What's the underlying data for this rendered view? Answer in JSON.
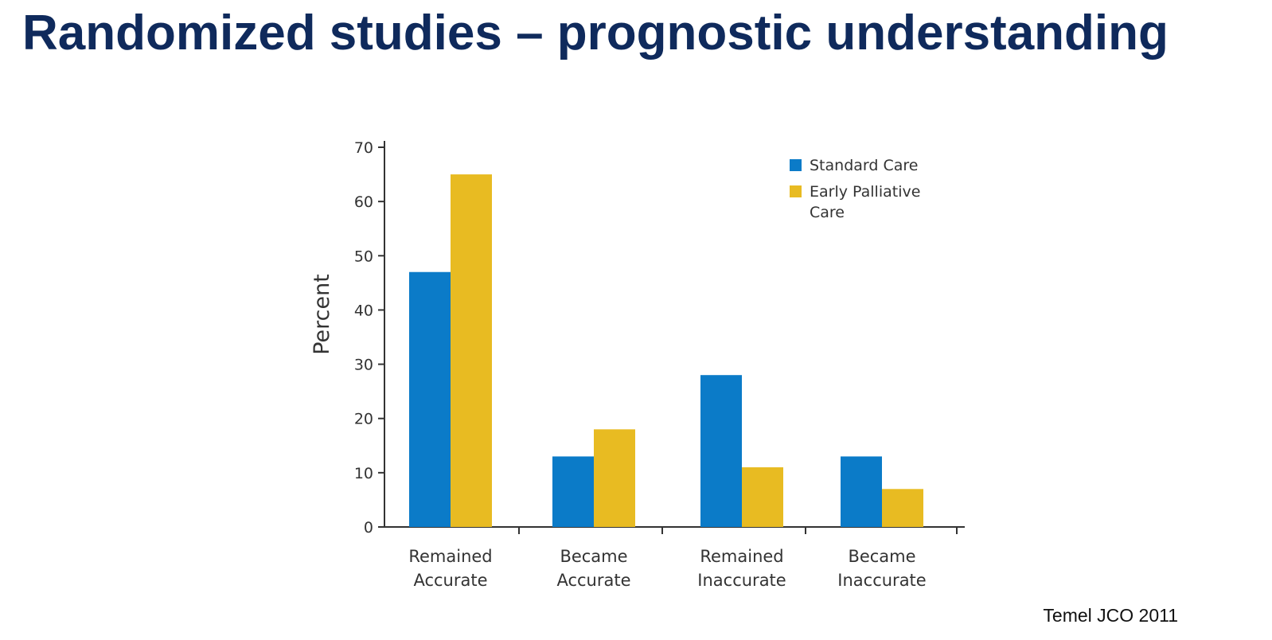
{
  "slide": {
    "title": "Randomized studies – prognostic understanding",
    "source": "Temel JCO 2011"
  },
  "chart_data": {
    "type": "bar",
    "categories": [
      [
        "Remained",
        "Accurate"
      ],
      [
        "Became",
        "Accurate"
      ],
      [
        "Remained",
        "Inaccurate"
      ],
      [
        "Became",
        "Inaccurate"
      ]
    ],
    "series": [
      {
        "name": "Standard Care",
        "color": "#0b7bc8",
        "values": [
          47,
          13,
          28,
          13
        ]
      },
      {
        "name": "Early Palliative Care",
        "color": "#e8bb22",
        "values": [
          65,
          18,
          11,
          7
        ]
      }
    ],
    "legend_lines": [
      [
        "Standard Care"
      ],
      [
        "Early Palliative",
        "Care"
      ]
    ],
    "ylabel": "Percent",
    "ylim": [
      0,
      70
    ],
    "yticks": [
      0,
      10,
      20,
      30,
      40,
      50,
      60,
      70
    ],
    "grid": false,
    "legend_position": "top-right"
  }
}
